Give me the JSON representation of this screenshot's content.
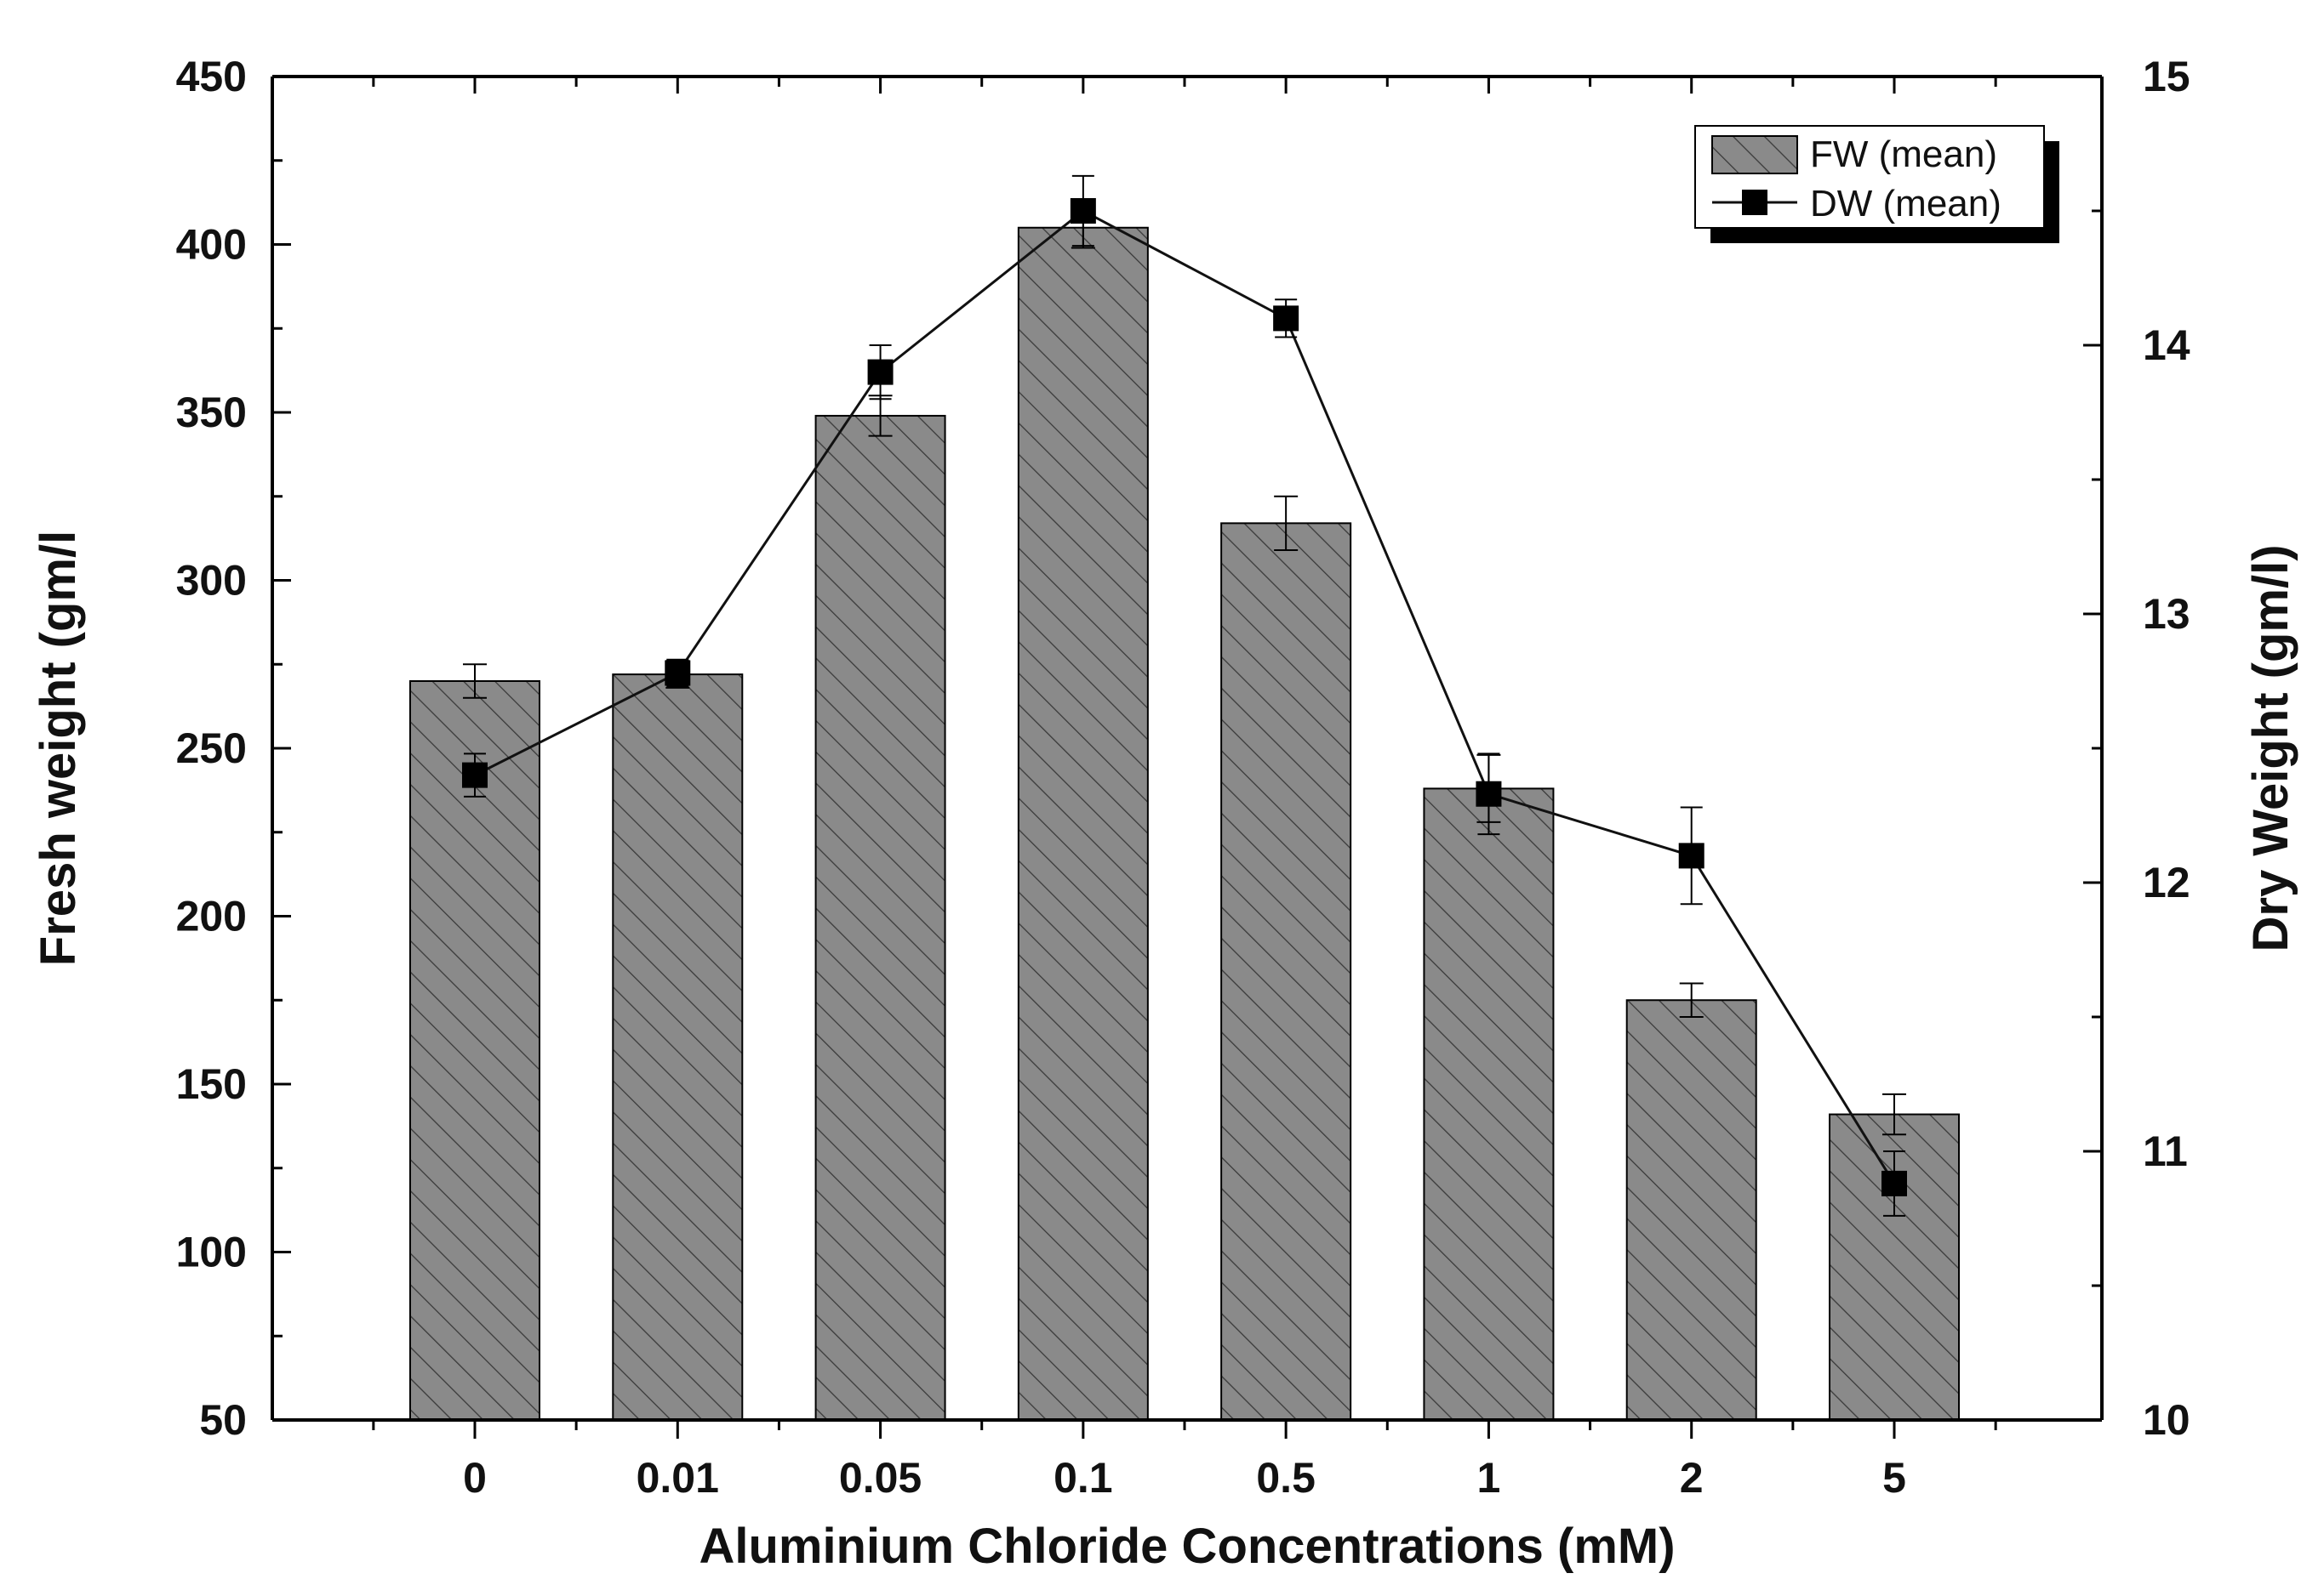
{
  "chart_data": {
    "type": "bar+line",
    "categories": [
      "0",
      "0.01",
      "0.05",
      "0.1",
      "0.5",
      "1",
      "2",
      "5"
    ],
    "series": [
      {
        "name": "FW (mean)",
        "kind": "bar",
        "axis": "left",
        "values": [
          270,
          272,
          349,
          405,
          317,
          238,
          175,
          141
        ],
        "error": [
          5,
          4,
          6,
          6,
          8,
          10,
          5,
          6
        ]
      },
      {
        "name": "DW (mean)",
        "kind": "line",
        "axis": "right",
        "values": [
          12.4,
          12.78,
          13.9,
          14.5,
          14.1,
          12.33,
          12.1,
          10.88
        ],
        "error": [
          0.08,
          0.05,
          0.1,
          0.13,
          0.07,
          0.15,
          0.18,
          0.12
        ]
      }
    ],
    "xlabel": "Aluminium Chloride Concentrations (mM)",
    "ylabel": "Fresh weight (gm/l",
    "y2label": "Dry Weight (gm/l)",
    "ylim": [
      50,
      450
    ],
    "y2lim": [
      10,
      15
    ],
    "yticks": [
      "50",
      "100",
      "150",
      "200",
      "250",
      "300",
      "350",
      "400",
      "450"
    ],
    "y2ticks": [
      "10",
      "11",
      "12",
      "13",
      "14",
      "15"
    ],
    "grid": false,
    "legend_position": "top-right",
    "colors": {
      "bar_fill": "#8a8a8a",
      "bar_hatch": "#3a3a3a",
      "line": "#111111",
      "marker": "#000000",
      "axis": "#000000"
    }
  }
}
